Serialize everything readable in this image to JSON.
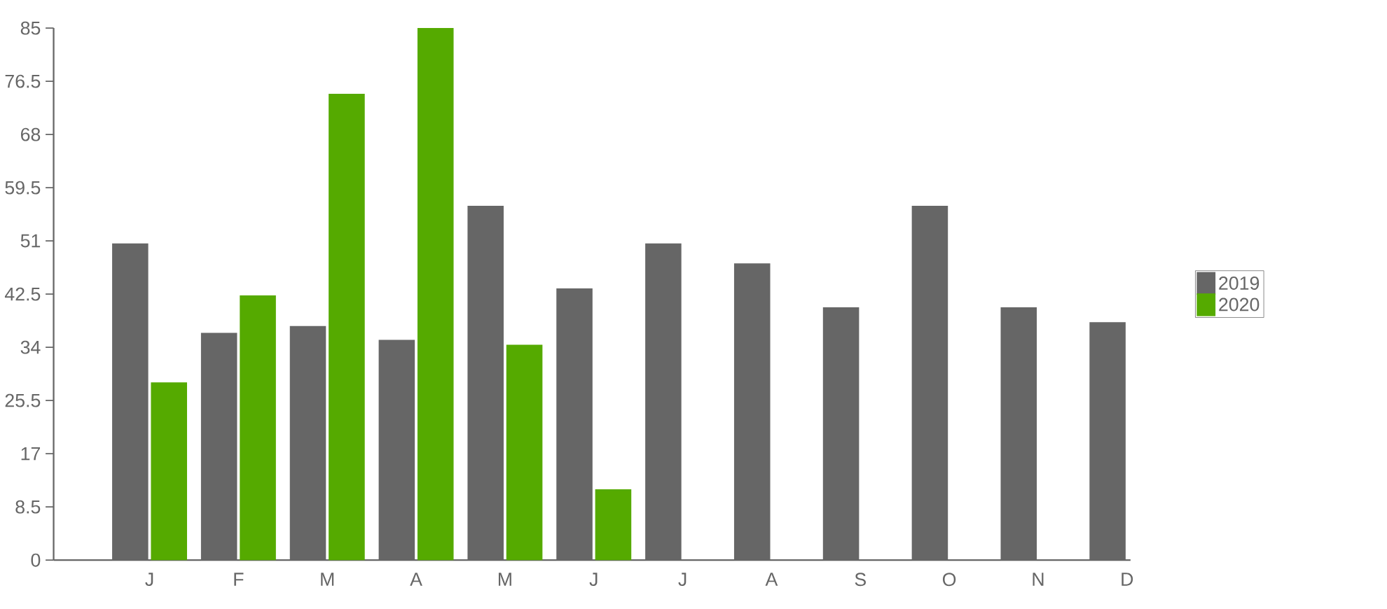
{
  "chart_data": {
    "type": "bar",
    "categories": [
      "J",
      "F",
      "M",
      "A",
      "M",
      "J",
      "J",
      "A",
      "S",
      "O",
      "N",
      "D"
    ],
    "series": [
      {
        "name": "2019",
        "color": "#666666",
        "values": [
          50.6,
          36.3,
          37.4,
          35.2,
          56.6,
          43.4,
          50.6,
          47.4,
          40.4,
          56.6,
          40.4,
          38.0
        ]
      },
      {
        "name": "2020",
        "color": "#55aa00",
        "values": [
          28.4,
          42.3,
          74.5,
          85,
          34.4,
          11.3,
          null,
          null,
          null,
          null,
          null,
          null
        ]
      }
    ],
    "ylim": [
      0,
      85
    ],
    "yticks": [
      0,
      8.5,
      17,
      25.5,
      34,
      42.5,
      51,
      59.5,
      68,
      76.5,
      85
    ],
    "grid": false,
    "legend": "right"
  }
}
